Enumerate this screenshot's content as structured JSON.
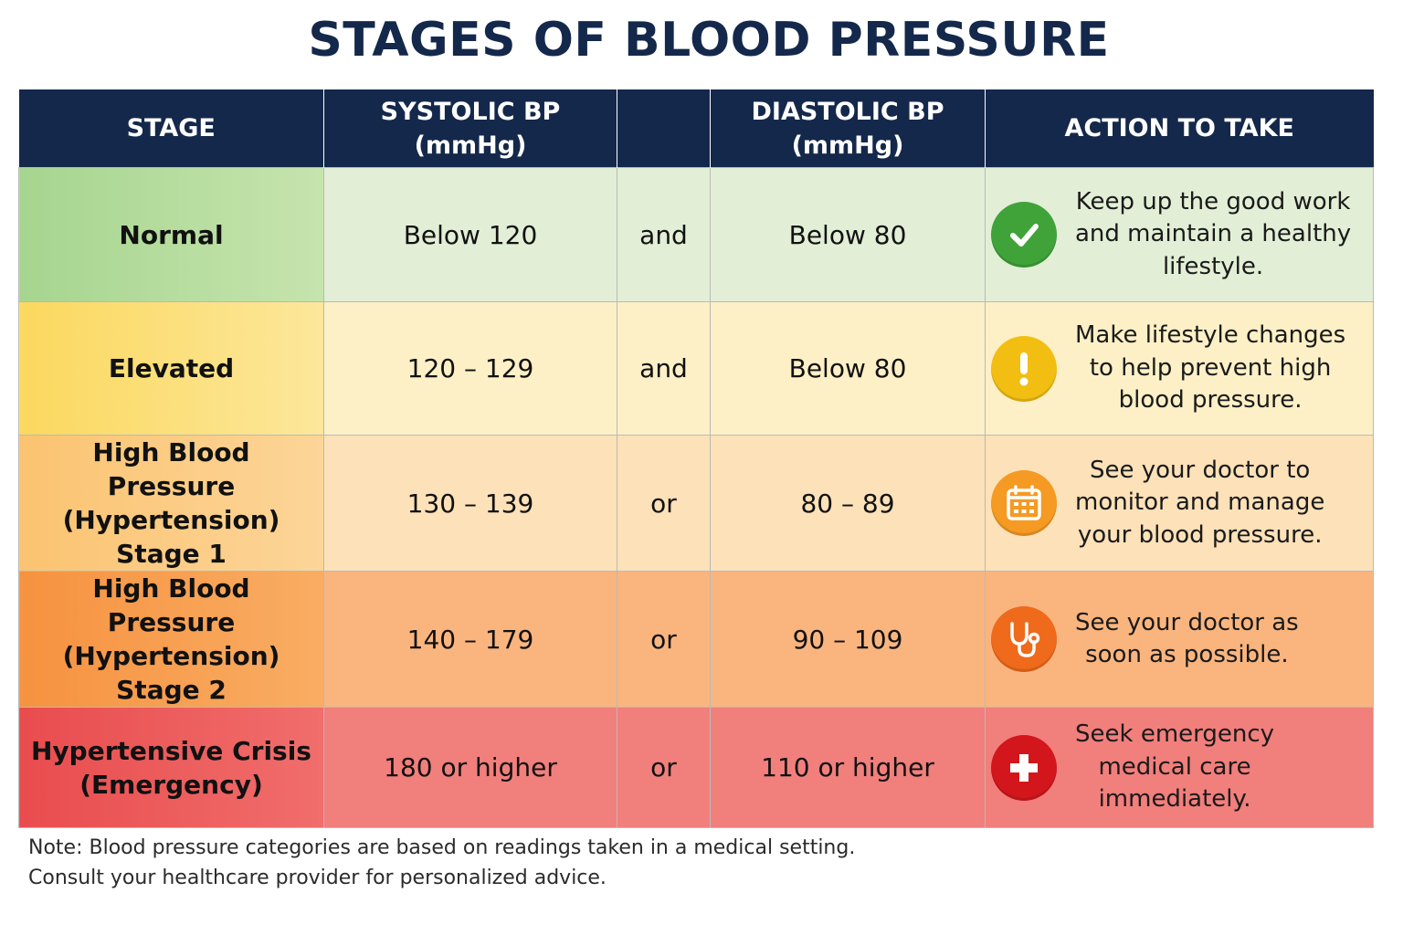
{
  "title": "STAGES OF BLOOD PRESSURE",
  "headers": {
    "stage": "STAGE",
    "systolic_line1": "SYSTOLIC BP",
    "systolic_line2": "(mmHg)",
    "connector": "",
    "diastolic_line1": "DIASTOLIC BP",
    "diastolic_line2": "(mmHg)",
    "action": "ACTION TO TAKE"
  },
  "rows": [
    {
      "stage_lines": [
        "Normal"
      ],
      "systolic": "Below 120",
      "connector": "and",
      "diastolic": "Below 80",
      "action_lines": [
        "Keep up the good work",
        "and maintain a healthy",
        "lifestyle."
      ],
      "icon": "check-icon",
      "icon_color": "#3fa33a"
    },
    {
      "stage_lines": [
        "Elevated"
      ],
      "systolic": "120 – 129",
      "connector": "and",
      "diastolic": "Below 80",
      "action_lines": [
        "Make lifestyle changes",
        "to help prevent high",
        "blood pressure."
      ],
      "icon": "exclamation-icon",
      "icon_color": "#f2be12"
    },
    {
      "stage_lines": [
        "High Blood Pressure",
        "(Hypertension)",
        "Stage 1"
      ],
      "systolic": "130 – 139",
      "connector": "or",
      "diastolic": "80 – 89",
      "action_lines": [
        "See your doctor to",
        "monitor and manage",
        "your blood pressure."
      ],
      "icon": "calendar-icon",
      "icon_color": "#f59a23"
    },
    {
      "stage_lines": [
        "High Blood Pressure",
        "(Hypertension)",
        "Stage 2"
      ],
      "systolic": "140 – 179",
      "connector": "or",
      "diastolic": "90 – 109",
      "action_lines": [
        "See your doctor as",
        "soon as possible."
      ],
      "icon": "stethoscope-icon",
      "icon_color": "#ef6a1a"
    },
    {
      "stage_lines": [
        "Hypertensive Crisis",
        "(Emergency)"
      ],
      "systolic": "180 or higher",
      "connector": "or",
      "diastolic": "110 or higher",
      "action_lines": [
        "Seek emergency",
        "medical care",
        "immediately."
      ],
      "icon": "medical-cross-icon",
      "icon_color": "#d3161c"
    }
  ],
  "note_lines": [
    "Note: Blood pressure categories are based on readings taken in a medical setting.",
    "Consult your healthcare provider for personalized advice."
  ],
  "colors": {
    "header_bg": "#14284b",
    "title": "#14284b",
    "normal": "#a6d58f",
    "elevated": "#fbd85e",
    "stage1": "#fbc371",
    "stage2": "#f69240",
    "crisis": "#e94c4e"
  }
}
